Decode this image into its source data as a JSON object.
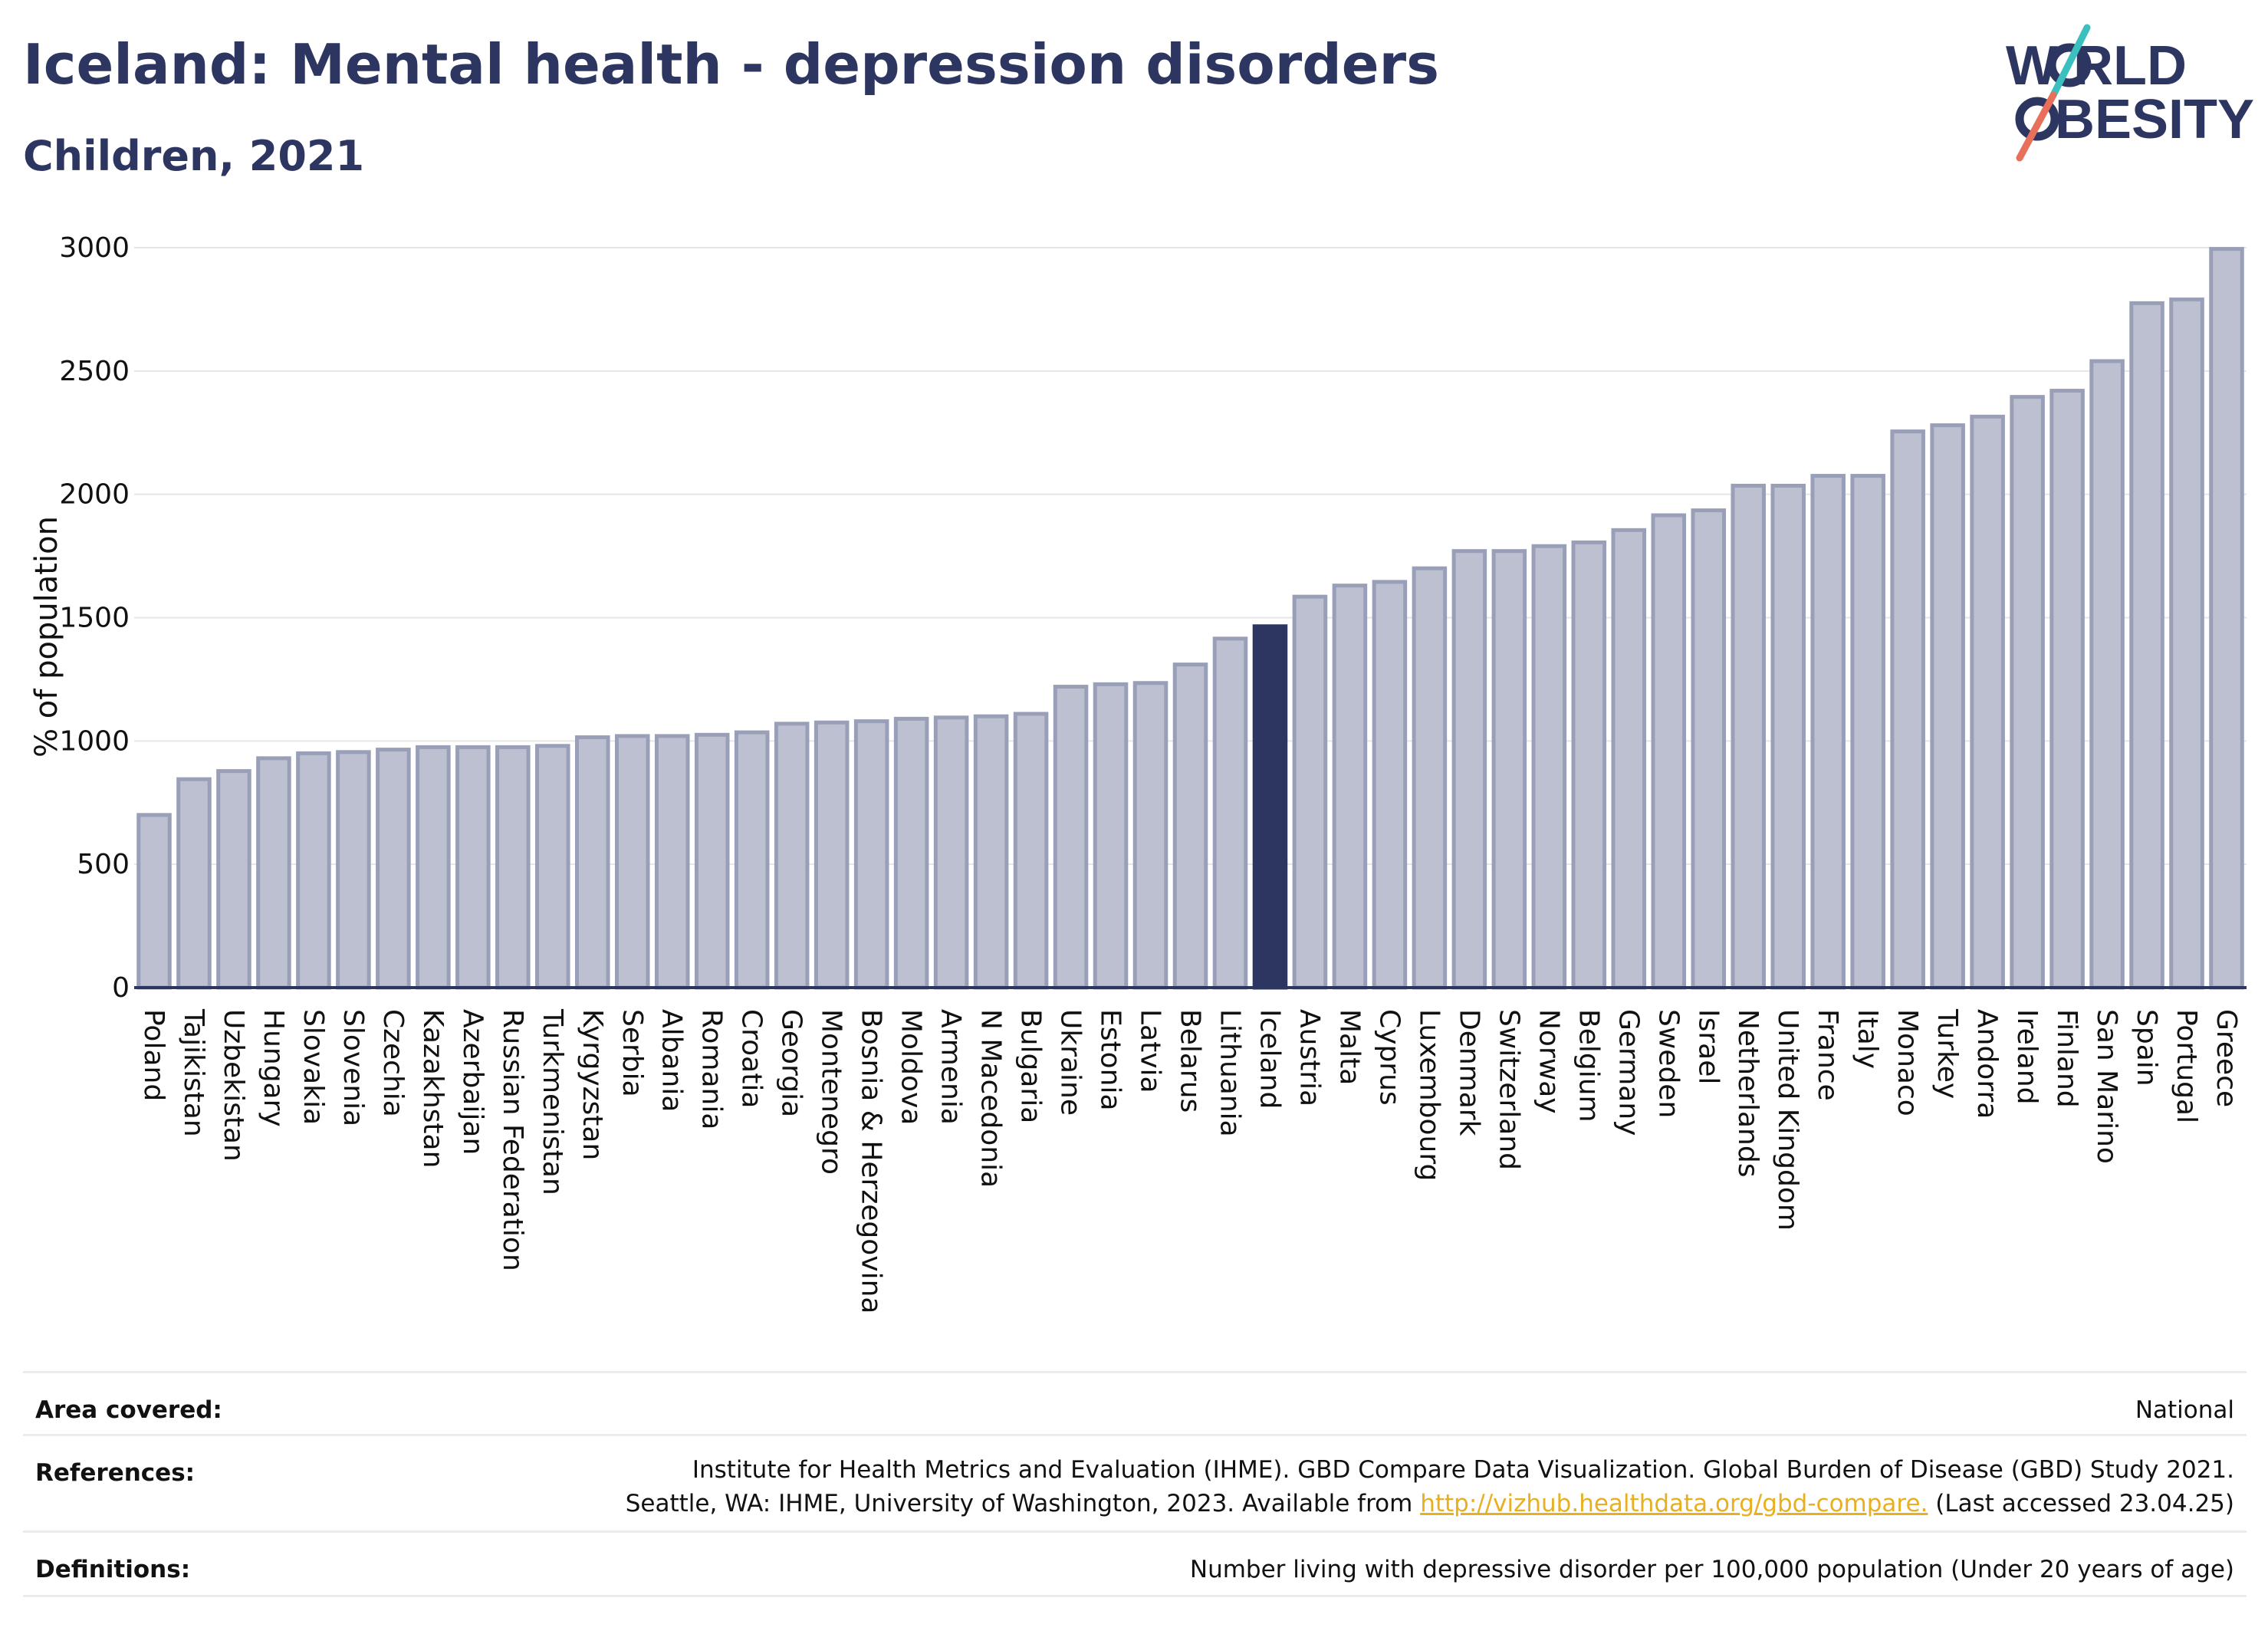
{
  "header": {
    "title": "Iceland: Mental health - depression disorders",
    "subtitle": "Children, 2021"
  },
  "logo": {
    "line1": "W RLD",
    "line2": "BESITY",
    "text": "WORLD OBESITY",
    "colors": {
      "text": "#2d3561",
      "slash_teal": "#3cbfbf",
      "slash_coral": "#e8705a"
    }
  },
  "colors": {
    "bar_fill": "#bcc0d0",
    "bar_stroke": "#9a9fb8",
    "highlight_fill": "#2d3561",
    "grid": "#e6e6e6",
    "axis": "#2d3561",
    "link": "#e8b021"
  },
  "chart_data": {
    "type": "bar",
    "ylabel": "% of population",
    "ylim": [
      0,
      3000
    ],
    "yticks": [
      0,
      500,
      1000,
      1500,
      2000,
      2500,
      3000
    ],
    "grid": true,
    "highlight": "Iceland",
    "categories": [
      "Poland",
      "Tajikistan",
      "Uzbekistan",
      "Hungary",
      "Slovakia",
      "Slovenia",
      "Czechia",
      "Kazakhstan",
      "Azerbaijan",
      "Russian Federation",
      "Turkmenistan",
      "Kyrgyzstan",
      "Serbia",
      "Albania",
      "Romania",
      "Croatia",
      "Georgia",
      "Montenegro",
      "Bosnia & Herzegovina",
      "Moldova",
      "Armenia",
      "N Macedonia",
      "Bulgaria",
      "Ukraine",
      "Estonia",
      "Latvia",
      "Belarus",
      "Lithuania",
      "Iceland",
      "Austria",
      "Malta",
      "Cyprus",
      "Luxembourg",
      "Denmark",
      "Switzerland",
      "Norway",
      "Belgium",
      "Germany",
      "Sweden",
      "Israel",
      "Netherlands",
      "United Kingdom",
      "France",
      "Italy",
      "Monaco",
      "Turkey",
      "Andorra",
      "Ireland",
      "Finland",
      "San Marino",
      "Spain",
      "Portugal",
      "Greece"
    ],
    "values": [
      700,
      845,
      878,
      930,
      950,
      955,
      965,
      975,
      975,
      975,
      980,
      1015,
      1020,
      1020,
      1025,
      1035,
      1070,
      1075,
      1080,
      1090,
      1095,
      1100,
      1110,
      1220,
      1230,
      1235,
      1310,
      1415,
      1465,
      1585,
      1630,
      1645,
      1700,
      1770,
      1770,
      1790,
      1805,
      1855,
      1915,
      1935,
      2035,
      2035,
      2075,
      2075,
      2255,
      2280,
      2315,
      2395,
      2420,
      2540,
      2775,
      2790,
      2995
    ]
  },
  "info": {
    "area_label": "Area covered:",
    "area_value": "National",
    "references_label": "References:",
    "references_line1": "Institute for Health Metrics and Evaluation (IHME). GBD Compare Data Visualization. Global Burden of Disease (GBD) Study 2021.",
    "references_line2_pre": "Seattle, WA: IHME, University of Washington, 2023. Available from ",
    "references_link": "http://vizhub.healthdata.org/gbd-compare.",
    "references_line2_post": " (Last accessed 23.04.25)",
    "definitions_label": "Definitions:",
    "definitions_value": "Number living with depressive disorder per 100,000 population (Under 20 years of age)"
  }
}
